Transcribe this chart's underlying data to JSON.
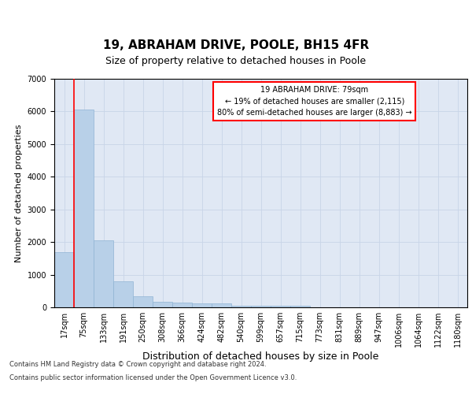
{
  "title1": "19, ABRAHAM DRIVE, POOLE, BH15 4FR",
  "title2": "Size of property relative to detached houses in Poole",
  "xlabel": "Distribution of detached houses by size in Poole",
  "ylabel": "Number of detached properties",
  "categories": [
    "17sqm",
    "75sqm",
    "133sqm",
    "191sqm",
    "250sqm",
    "308sqm",
    "366sqm",
    "424sqm",
    "482sqm",
    "540sqm",
    "599sqm",
    "657sqm",
    "715sqm",
    "773sqm",
    "831sqm",
    "889sqm",
    "947sqm",
    "1006sqm",
    "1064sqm",
    "1122sqm",
    "1180sqm"
  ],
  "values": [
    1700,
    6050,
    2050,
    800,
    330,
    180,
    150,
    120,
    120,
    50,
    50,
    50,
    50,
    0,
    0,
    0,
    0,
    0,
    0,
    0,
    0
  ],
  "bar_color": "#b8d0e8",
  "bar_edge_color": "#90b4d4",
  "annotation_text": "19 ABRAHAM DRIVE: 79sqm\n← 19% of detached houses are smaller (2,115)\n80% of semi-detached houses are larger (8,883) →",
  "annotation_box_color": "white",
  "annotation_box_edge_color": "red",
  "redline_color": "red",
  "ylim": [
    0,
    7000
  ],
  "yticks": [
    0,
    1000,
    2000,
    3000,
    4000,
    5000,
    6000,
    7000
  ],
  "grid_color": "#c8d4e8",
  "background_color": "#e0e8f4",
  "footer1": "Contains HM Land Registry data © Crown copyright and database right 2024.",
  "footer2": "Contains public sector information licensed under the Open Government Licence v3.0.",
  "title1_fontsize": 11,
  "title2_fontsize": 9,
  "tick_fontsize": 7,
  "xlabel_fontsize": 9,
  "ylabel_fontsize": 8,
  "annotation_fontsize": 7,
  "footer_fontsize": 6
}
